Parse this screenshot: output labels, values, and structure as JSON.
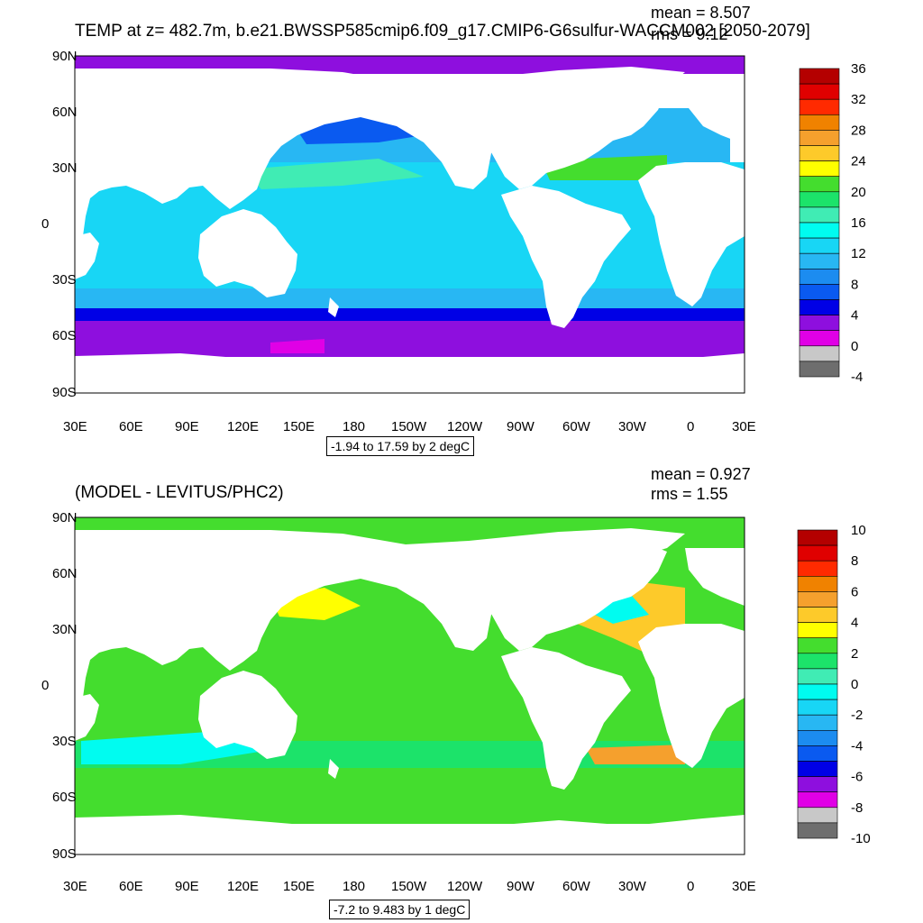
{
  "top_panel": {
    "title": "TEMP at z= 482.7m, b.e21.BWSSP585cmip6.f09_g17.CMIP6-G6sulfur-WACCM002 [2050-2079]",
    "mean_text": "mean = 8.507",
    "rms_text": "rms = 9.12",
    "range_text": "-1.94 to 17.59 by 2 degC",
    "colorbar_labels": [
      "36",
      "32",
      "28",
      "24",
      "20",
      "16",
      "12",
      "8",
      "4",
      "0",
      "-4"
    ],
    "colorbar_colors": [
      "#b40000",
      "#e00000",
      "#ff2a00",
      "#f08200",
      "#f5a02d",
      "#fdca2a",
      "#ffff00",
      "#44dd2e",
      "#1ce36a",
      "#40ecb4",
      "#00fcf0",
      "#18d6f5",
      "#28b7f3",
      "#1c8cf0",
      "#0a5af0",
      "#0000e6",
      "#8e0fde",
      "#e000e6",
      "#c8c8c8",
      "#6e6e6e"
    ]
  },
  "bottom_panel": {
    "title": "(MODEL - LEVITUS/PHC2)",
    "mean_text": "mean = 0.927",
    "rms_text": "rms = 1.55",
    "range_text": "-7.2 to 9.483 by 1 degC",
    "colorbar_labels": [
      "10",
      "8",
      "6",
      "4",
      "2",
      "0",
      "-2",
      "-4",
      "-6",
      "-8",
      "-10"
    ],
    "colorbar_colors": [
      "#b40000",
      "#e00000",
      "#ff2a00",
      "#f08200",
      "#f5a02d",
      "#fdca2a",
      "#ffff00",
      "#44dd2e",
      "#1ce36a",
      "#40ecb4",
      "#00fcf0",
      "#18d6f5",
      "#28b7f3",
      "#1c8cf0",
      "#0a5af0",
      "#0000e6",
      "#8e0fde",
      "#e000e6",
      "#c8c8c8",
      "#6e6e6e"
    ]
  },
  "lat_labels": [
    "90N",
    "60N",
    "30N",
    "0",
    "30S",
    "60S",
    "90S"
  ],
  "lon_labels": [
    "30E",
    "60E",
    "90E",
    "120E",
    "150E",
    "180",
    "150W",
    "120W",
    "90W",
    "60W",
    "30W",
    "0",
    "30E"
  ]
}
